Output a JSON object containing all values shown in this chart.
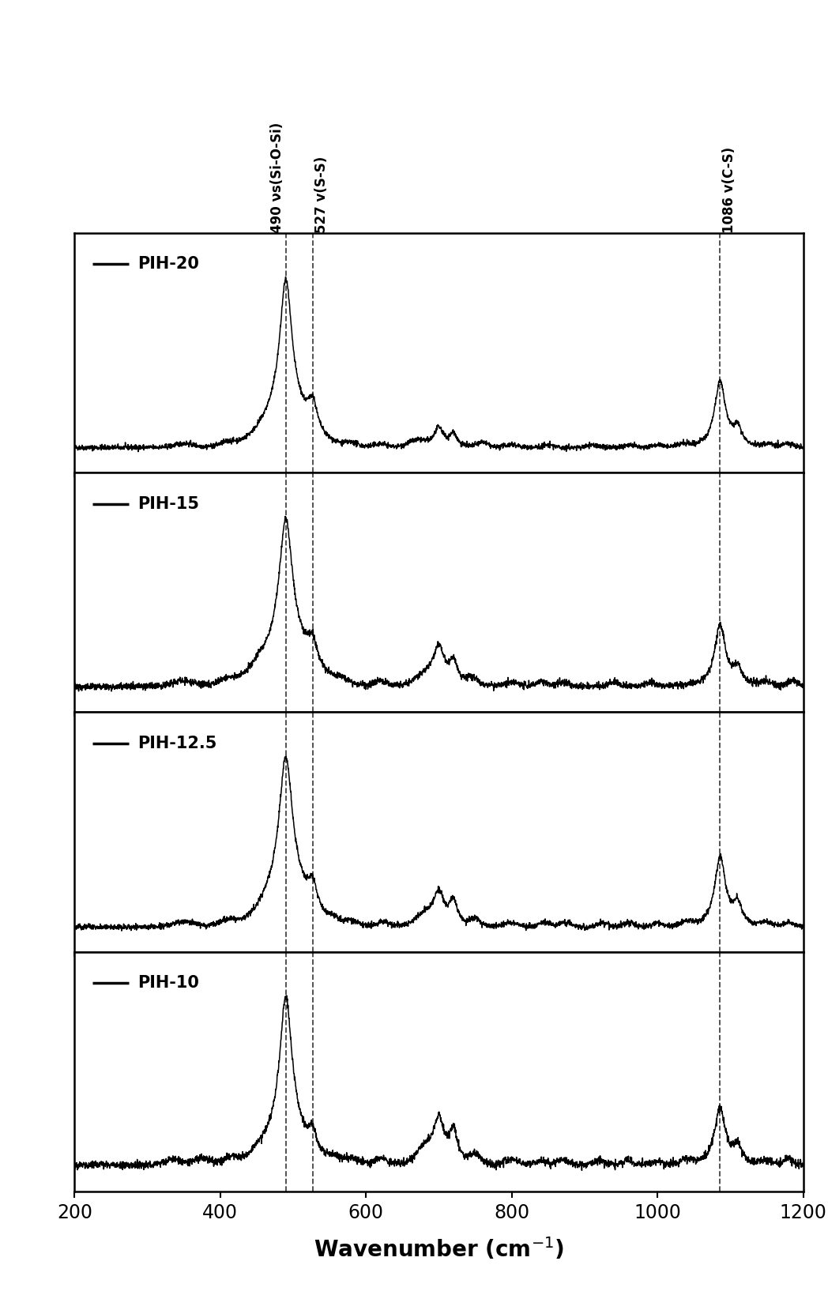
{
  "x_min": 200,
  "x_max": 1200,
  "xlabel_plain": "Wavenumber (cm$^{-1}$)",
  "labels": [
    "PIH-20",
    "PIH-15",
    "PIH-12.5",
    "PIH-10"
  ],
  "vlines": [
    490,
    527,
    1086
  ],
  "line_color": "#000000",
  "background_color": "#ffffff",
  "dashed_line_color": "#444444",
  "annotation_490": "490 νs(Si-O-Si)",
  "annotation_527": "527 v(S-S)",
  "annotation_1086": "1086 v(C-S)"
}
